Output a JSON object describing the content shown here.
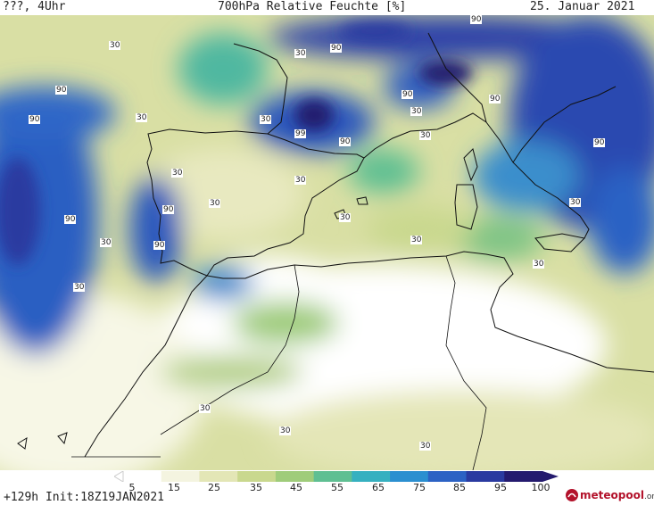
{
  "header": {
    "left": "???, 4Uhr",
    "title": "700hPa Relative Feuchte [%]",
    "date": "25. Januar 2021"
  },
  "footer": {
    "run_info": "+129h Init:18Z19JAN2021",
    "logo_name": "meteopool",
    "logo_tld": ".org"
  },
  "colorbar": {
    "ticks": [
      "5",
      "15",
      "25",
      "35",
      "45",
      "55",
      "65",
      "75",
      "85",
      "95",
      "100"
    ],
    "colors": [
      "#ffffff",
      "#f4f4e0",
      "#e3e6b6",
      "#c9d88e",
      "#9fcc7a",
      "#5fbf92",
      "#36b0c0",
      "#2b8fd0",
      "#2c62c4",
      "#2a3aa0",
      "#241a6e"
    ]
  },
  "isoline_labels": [
    {
      "text": "30"
    },
    {
      "text": "30"
    },
    {
      "text": "30"
    },
    {
      "text": "30"
    },
    {
      "text": "30"
    },
    {
      "text": "30"
    },
    {
      "text": "30"
    },
    {
      "text": "30"
    },
    {
      "text": "30"
    },
    {
      "text": "30"
    },
    {
      "text": "30"
    },
    {
      "text": "30"
    },
    {
      "text": "30"
    },
    {
      "text": "30"
    },
    {
      "text": "30"
    },
    {
      "text": "30"
    },
    {
      "text": "30"
    },
    {
      "text": "30"
    },
    {
      "text": "90"
    },
    {
      "text": "90"
    },
    {
      "text": "90"
    },
    {
      "text": "90"
    },
    {
      "text": "90"
    },
    {
      "text": "90"
    },
    {
      "text": "90"
    },
    {
      "text": "90"
    },
    {
      "text": "90"
    },
    {
      "text": "90"
    },
    {
      "text": "90"
    },
    {
      "text": "99"
    }
  ]
}
